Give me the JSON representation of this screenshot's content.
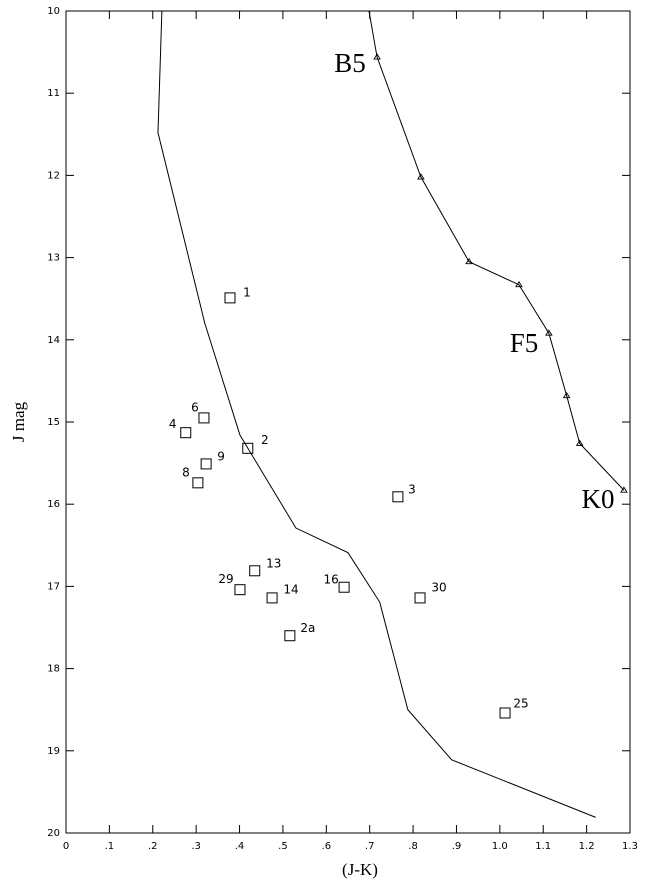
{
  "chart_data": {
    "type": "scatter",
    "xlabel": "(J-K)",
    "ylabel": "J mag",
    "color": "#000000",
    "xlim": [
      0,
      1.3
    ],
    "ylim": [
      20,
      10
    ],
    "xticks": [
      0,
      {
        "value": 0.1,
        "label": ".1"
      },
      {
        "value": 0.2,
        "label": ".2"
      },
      {
        "value": 0.3,
        "label": ".3"
      },
      {
        "value": 0.4,
        "label": ".4"
      },
      {
        "value": 0.5,
        "label": ".5"
      },
      {
        "value": 0.6,
        "label": ".6"
      },
      {
        "value": 0.7,
        "label": ".7"
      },
      {
        "value": 0.8,
        "label": ".8"
      },
      {
        "value": 0.9,
        "label": ".9"
      },
      {
        "value": 1.0,
        "label": "1.0"
      },
      1.1,
      1.2,
      1.3
    ],
    "yticks": [
      10,
      11,
      12,
      13,
      14,
      15,
      16,
      17,
      18,
      19,
      20
    ],
    "points": {
      "labels": [
        "1",
        "6",
        "4",
        "2",
        "9",
        "8",
        "3",
        "13",
        "29",
        "14",
        "16",
        "30",
        "2a",
        "25"
      ],
      "x": [
        0.378,
        0.318,
        0.276,
        0.419,
        0.323,
        0.304,
        0.765,
        0.435,
        0.401,
        0.475,
        0.641,
        0.816,
        0.516,
        1.012
      ],
      "values": [
        13.49,
        14.95,
        15.13,
        15.32,
        15.51,
        15.74,
        15.91,
        16.81,
        17.04,
        17.14,
        17.01,
        17.14,
        17.6,
        18.54
      ]
    },
    "lines": [
      {
        "marker": "none",
        "x": [
          0.221,
          0.212,
          0.32,
          0.401,
          0.53,
          0.65,
          0.723,
          0.788,
          0.889,
          1.221
        ],
        "values": [
          10,
          11.48,
          13.8,
          15.16,
          16.29,
          16.59,
          17.19,
          18.5,
          19.11,
          19.81
        ]
      },
      {
        "marker": "triangle",
        "x": [
          0.695,
          0.717,
          0.818,
          0.929,
          1.044,
          1.113,
          1.154,
          1.184,
          1.286
        ],
        "values": [
          9.9,
          10.56,
          12.02,
          13.05,
          13.33,
          13.92,
          14.68,
          15.26,
          15.83
        ]
      }
    ],
    "annotations": [
      "B5",
      "F5",
      "K0"
    ]
  }
}
